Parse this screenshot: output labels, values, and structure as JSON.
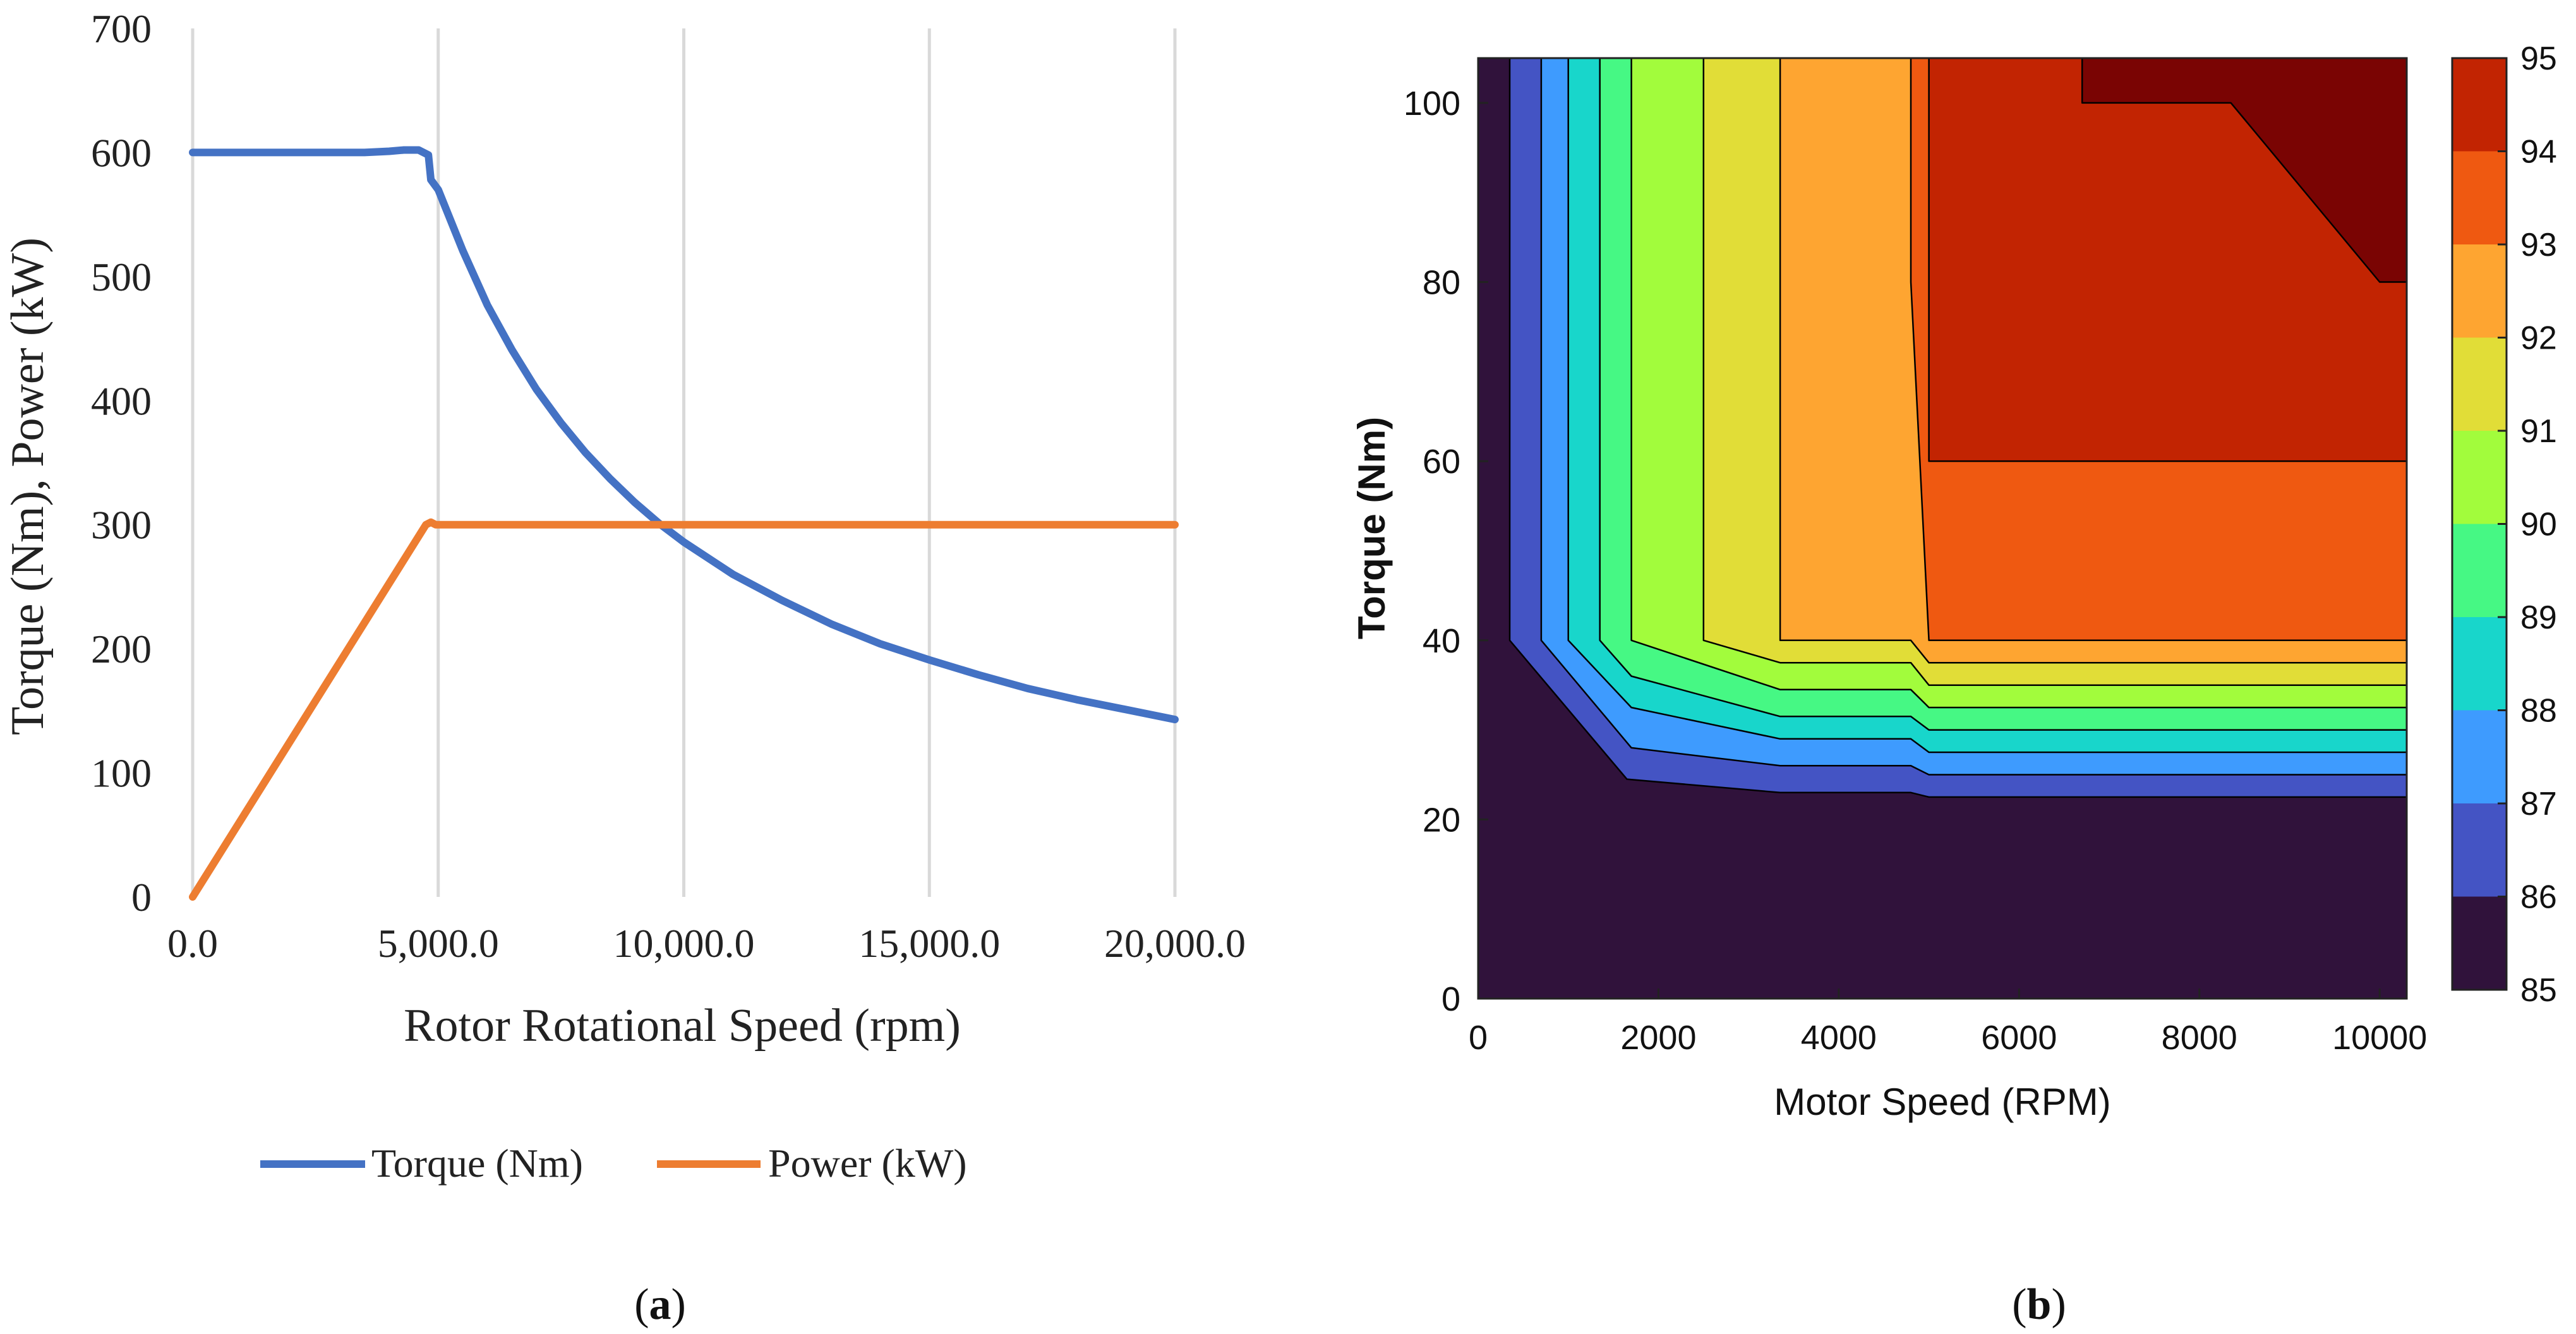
{
  "chart_data": [
    {
      "panel_label": "(a)",
      "type": "line",
      "xlabel": "Rotor Rotational Speed (rpm)",
      "ylabel": "Torque (Nm), Power (kW)",
      "xlim": [
        0,
        20000
      ],
      "ylim": [
        0,
        700
      ],
      "x_ticks": [
        0,
        5000,
        10000,
        15000,
        20000
      ],
      "x_tick_labels": [
        "0.0",
        "5,000.0",
        "10,000.0",
        "15,000.0",
        "20,000.0"
      ],
      "y_ticks": [
        0,
        100,
        200,
        300,
        400,
        500,
        600,
        700
      ],
      "y_tick_labels": [
        "0",
        "100",
        "200",
        "300",
        "400",
        "500",
        "600",
        "700"
      ],
      "grid": "vertical",
      "legend_position": "bottom",
      "series": [
        {
          "name": "Torque (Nm)",
          "color": "#4472C4",
          "points": [
            [
              0,
              600
            ],
            [
              1000,
              600
            ],
            [
              2000,
              600
            ],
            [
              3000,
              600
            ],
            [
              3500,
              600
            ],
            [
              4000,
              601
            ],
            [
              4300,
              602
            ],
            [
              4600,
              602
            ],
            [
              4800,
              598
            ],
            [
              4850,
              578
            ],
            [
              5000,
              570
            ],
            [
              5500,
              521
            ],
            [
              6000,
              477
            ],
            [
              6500,
              441
            ],
            [
              7000,
              409
            ],
            [
              7500,
              382
            ],
            [
              8000,
              358
            ],
            [
              8500,
              337
            ],
            [
              9000,
              318
            ],
            [
              9500,
              301
            ],
            [
              10000,
              286
            ],
            [
              11000,
              260
            ],
            [
              12000,
              239
            ],
            [
              13000,
              220
            ],
            [
              14000,
              204
            ],
            [
              15000,
              191
            ],
            [
              16000,
              179
            ],
            [
              17000,
              168
            ],
            [
              18000,
              159
            ],
            [
              19000,
              151
            ],
            [
              20000,
              143
            ]
          ]
        },
        {
          "name": "Power (kW)",
          "color": "#ED7D31",
          "points": [
            [
              0,
              0
            ],
            [
              4750,
              300
            ],
            [
              4850,
              302
            ],
            [
              4950,
              300
            ],
            [
              10000,
              300
            ],
            [
              15000,
              300
            ],
            [
              20000,
              300
            ]
          ]
        }
      ]
    },
    {
      "panel_label": "(b)",
      "type": "heatmap",
      "subtype": "filled-contour",
      "xlabel": "Motor Speed (RPM)",
      "ylabel": "Torque (Nm)",
      "xlim": [
        0,
        10300
      ],
      "ylim": [
        0,
        105
      ],
      "x_ticks": [
        0,
        2000,
        4000,
        6000,
        8000,
        10000
      ],
      "x_tick_labels": [
        "0",
        "2000",
        "4000",
        "6000",
        "8000",
        "10000"
      ],
      "y_ticks": [
        0,
        20,
        40,
        60,
        80,
        100
      ],
      "y_tick_labels": [
        "0",
        "20",
        "40",
        "60",
        "80",
        "100"
      ],
      "colorbar": {
        "min": 85,
        "max": 95,
        "ticks": [
          85,
          86,
          87,
          88,
          89,
          90,
          91,
          92,
          93,
          94,
          95
        ],
        "tick_labels": [
          "85",
          "86",
          "87",
          "88",
          "89",
          "90",
          "91",
          "92",
          "93",
          "94",
          "95"
        ],
        "levels": [
          {
            "level": 85,
            "color": "#30123B"
          },
          {
            "level": 86,
            "color": "#4454C4"
          },
          {
            "level": 87,
            "color": "#3E9BFE"
          },
          {
            "level": 88,
            "color": "#18D6CB"
          },
          {
            "level": 89,
            "color": "#46F884"
          },
          {
            "level": 90,
            "color": "#A2FC3C"
          },
          {
            "level": 91,
            "color": "#E1DD37"
          },
          {
            "level": 92,
            "color": "#FEA531"
          },
          {
            "level": 93,
            "color": "#EF5911"
          },
          {
            "level": 94,
            "color": "#C22402"
          },
          {
            "level": 95,
            "color": "#7A0403"
          }
        ]
      },
      "regions": [
        {
          "level": 85,
          "polygon": [
            [
              0,
              0
            ],
            [
              10300,
              0
            ],
            [
              10300,
              105
            ],
            [
              0,
              105
            ]
          ]
        },
        {
          "level": 86,
          "polygon": [
            [
              350,
              105
            ],
            [
              350,
              40
            ],
            [
              1650,
              24.5
            ],
            [
              3350,
              23
            ],
            [
              4800,
              23
            ],
            [
              5000,
              22.5
            ],
            [
              10300,
              22.5
            ],
            [
              10300,
              105
            ]
          ]
        },
        {
          "level": 87,
          "polygon": [
            [
              700,
              105
            ],
            [
              700,
              40
            ],
            [
              1700,
              28
            ],
            [
              3350,
              26
            ],
            [
              4800,
              26
            ],
            [
              5000,
              25
            ],
            [
              10300,
              25
            ],
            [
              10300,
              105
            ]
          ]
        },
        {
          "level": 88,
          "polygon": [
            [
              1000,
              105
            ],
            [
              1000,
              40
            ],
            [
              1700,
              32.5
            ],
            [
              3350,
              29
            ],
            [
              4800,
              29
            ],
            [
              5000,
              27.5
            ],
            [
              10300,
              27.5
            ],
            [
              10300,
              105
            ]
          ]
        },
        {
          "level": 89,
          "polygon": [
            [
              1350,
              105
            ],
            [
              1350,
              40
            ],
            [
              1700,
              36
            ],
            [
              3350,
              31.5
            ],
            [
              4800,
              31.5
            ],
            [
              5000,
              30
            ],
            [
              10300,
              30
            ],
            [
              10300,
              105
            ]
          ]
        },
        {
          "level": 90,
          "polygon": [
            [
              1700,
              105
            ],
            [
              1700,
              40
            ],
            [
              3350,
              34.5
            ],
            [
              4800,
              34.5
            ],
            [
              5000,
              32.5
            ],
            [
              10300,
              32.5
            ],
            [
              10300,
              105
            ]
          ]
        },
        {
          "level": 91,
          "polygon": [
            [
              2500,
              105
            ],
            [
              2500,
              40
            ],
            [
              3350,
              37.5
            ],
            [
              4800,
              37.5
            ],
            [
              5000,
              35
            ],
            [
              10300,
              35
            ],
            [
              10300,
              105
            ]
          ]
        },
        {
          "level": 92,
          "polygon": [
            [
              3350,
              105
            ],
            [
              3350,
              40
            ],
            [
              4800,
              40
            ],
            [
              5000,
              37.5
            ],
            [
              10300,
              37.5
            ],
            [
              10300,
              105
            ]
          ]
        },
        {
          "level": 93,
          "polygon": [
            [
              4800,
              105
            ],
            [
              4800,
              80
            ],
            [
              5000,
              40
            ],
            [
              10300,
              40
            ],
            [
              10300,
              105
            ]
          ]
        },
        {
          "level": 94,
          "polygon": [
            [
              5000,
              105
            ],
            [
              5000,
              60
            ],
            [
              10300,
              60
            ],
            [
              10300,
              105
            ]
          ]
        },
        {
          "level": 95,
          "polygon": [
            [
              6700,
              105
            ],
            [
              6700,
              100
            ],
            [
              8350,
              100
            ],
            [
              10000,
              80
            ],
            [
              10300,
              80
            ],
            [
              10300,
              105
            ]
          ]
        }
      ]
    }
  ],
  "figure": {
    "legend_a": [
      "Torque (Nm)",
      "Power (kW)"
    ]
  }
}
